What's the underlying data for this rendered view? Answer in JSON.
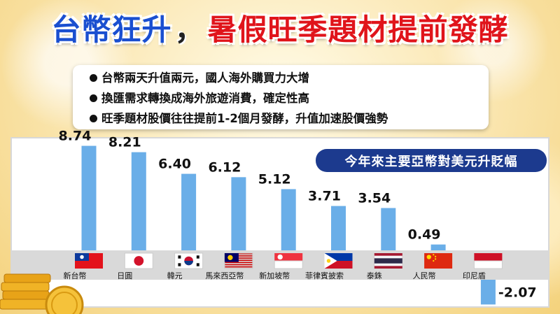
{
  "header": {
    "title_left": "台幣狂升",
    "title_separator": "，",
    "title_right": "暑假旺季題材提前發酵"
  },
  "bullets": [
    "台幣兩天升值兩元，國人海外購買力大增",
    "換匯需求轉換成海外旅遊消費，確定性高",
    "旺季題材股價往往提前1-2個月發酵，升值加速股價強勢"
  ],
  "chart_data": {
    "type": "bar",
    "title": "今年來主要亞幣對美元升貶幅",
    "categories": [
      "新台幣",
      "日圓",
      "韓元",
      "馬來西亞幣",
      "新加坡幣",
      "菲律賓披索",
      "泰銖",
      "人民幣",
      "印尼盾"
    ],
    "values": [
      8.74,
      8.21,
      6.4,
      6.12,
      5.12,
      3.71,
      3.54,
      0.49,
      -2.07
    ],
    "value_labels": [
      "8.74",
      "8.21",
      "6.40",
      "6.12",
      "5.12",
      "3.71",
      "3.54",
      "0.49",
      "-2.07"
    ],
    "flags": [
      "taiwan-flag",
      "japan-flag",
      "south-korea-flag",
      "malaysia-flag",
      "singapore-flag",
      "philippines-flag",
      "thailand-flag",
      "china-flag",
      "indonesia-flag"
    ],
    "bar_color": "#6aaee8",
    "grid": false
  }
}
